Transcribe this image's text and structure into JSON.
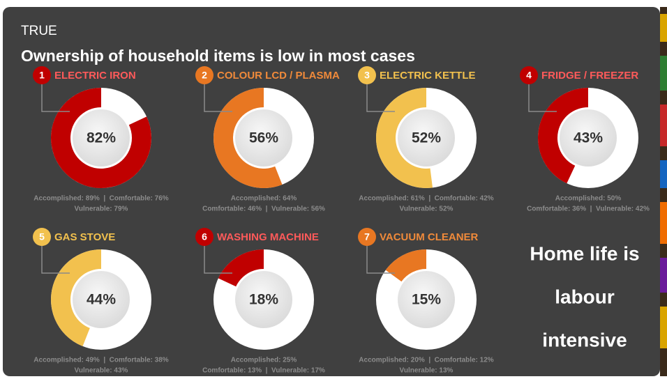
{
  "header": {
    "tag": "TRUE",
    "title": "Ownership of household items is low in most cases"
  },
  "chart_data": [
    {
      "type": "donut",
      "index": "1",
      "title": "ELECTRIC IRON",
      "values": [
        82
      ],
      "value_labels": [
        "82%"
      ],
      "color": "#c00000",
      "notes": [
        "Accomplished: 89%  |  Comfortable: 76%",
        "Vulnerable: 79%"
      ]
    },
    {
      "type": "donut",
      "index": "2",
      "title": "COLOUR LCD / PLASMA",
      "values": [
        56
      ],
      "value_labels": [
        "56%"
      ],
      "color": "#e87722",
      "notes": [
        "Accomplished: 64%",
        "Comfortable: 46%  |  Vulnerable: 56%"
      ]
    },
    {
      "type": "donut",
      "index": "3",
      "title": "ELECTRIC KETTLE",
      "values": [
        52
      ],
      "value_labels": [
        "52%"
      ],
      "color": "#f2c14e",
      "notes": [
        "Accomplished: 61%  |  Comfortable: 42%",
        "Vulnerable: 52%"
      ]
    },
    {
      "type": "donut",
      "index": "4",
      "title": "FRIDGE / FREEZER",
      "values": [
        43
      ],
      "value_labels": [
        "43%"
      ],
      "color": "#c00000",
      "notes": [
        "Accomplished: 50%",
        "Comfortable: 36%  |  Vulnerable: 42%"
      ]
    },
    {
      "type": "donut",
      "index": "5",
      "title": "GAS STOVE",
      "values": [
        44
      ],
      "value_labels": [
        "44%"
      ],
      "color": "#f2c14e",
      "notes": [
        "Accomplished: 49%  |  Comfortable: 38%",
        "Vulnerable: 43%"
      ]
    },
    {
      "type": "donut",
      "index": "6",
      "title": "WASHING MACHINE",
      "values": [
        18
      ],
      "value_labels": [
        "18%"
      ],
      "color": "#c00000",
      "notes": [
        "Accomplished: 25%",
        "Comfortable: 13%  |  Vulnerable: 17%"
      ]
    },
    {
      "type": "donut",
      "index": "7",
      "title": "VACUUM CLEANER",
      "values": [
        15
      ],
      "value_labels": [
        "15%"
      ],
      "color": "#e87722",
      "notes": [
        "Accomplished: 20%  |  Comfortable: 12%",
        "Vulnerable: 13%"
      ]
    }
  ],
  "callout": [
    "Home life is",
    "labour",
    "intensive"
  ]
}
